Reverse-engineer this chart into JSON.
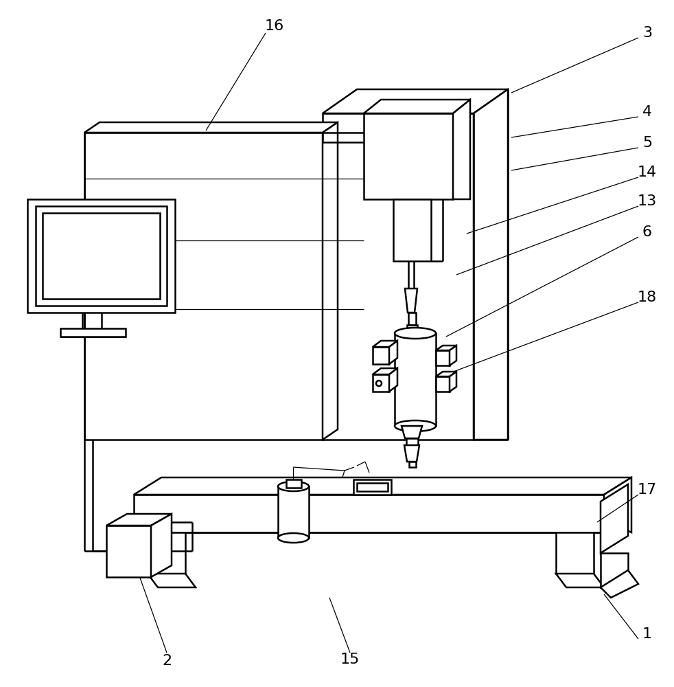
{
  "bg_color": "#ffffff",
  "lc": "#000000",
  "lw": 1.8,
  "lw_thin": 0.9,
  "lw_leader": 0.9
}
